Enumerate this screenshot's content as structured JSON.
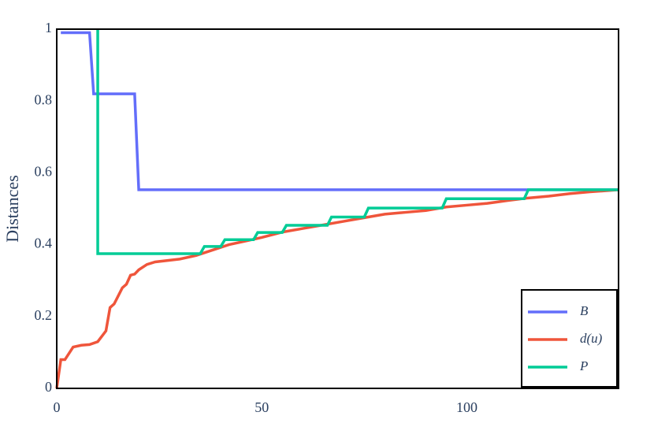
{
  "chart_data": {
    "type": "line",
    "y_label": "Distances",
    "xlim": [
      0,
      137
    ],
    "ylim": [
      0,
      1
    ],
    "xticks": [
      0,
      50,
      100
    ],
    "yticks": [
      0,
      0.2,
      0.4,
      0.6,
      0.8,
      1
    ],
    "grid": false,
    "legend": "bottom-right",
    "series": [
      {
        "name": "B",
        "color": "#636efa",
        "x": [
          1,
          8,
          9,
          19,
          20,
          137
        ],
        "values": [
          0.99,
          0.99,
          0.82,
          0.82,
          0.553,
          0.553
        ]
      },
      {
        "name": "d(u)",
        "color": "#ef553b",
        "x": [
          0,
          1,
          2,
          4,
          6,
          8,
          10,
          12,
          13,
          14,
          16,
          17,
          18,
          19,
          20,
          22,
          24,
          30,
          34,
          38,
          42,
          46,
          50,
          55,
          60,
          65,
          70,
          75,
          80,
          85,
          90,
          95,
          100,
          105,
          110,
          115,
          120,
          125,
          130,
          137
        ],
        "values": [
          0,
          0.08,
          0.08,
          0.115,
          0.12,
          0.122,
          0.13,
          0.16,
          0.225,
          0.235,
          0.28,
          0.29,
          0.315,
          0.318,
          0.33,
          0.345,
          0.352,
          0.36,
          0.37,
          0.385,
          0.4,
          0.41,
          0.42,
          0.435,
          0.445,
          0.455,
          0.465,
          0.475,
          0.485,
          0.49,
          0.495,
          0.505,
          0.51,
          0.515,
          0.523,
          0.53,
          0.535,
          0.542,
          0.547,
          0.553
        ]
      },
      {
        "name": "P",
        "color": "#00cc96",
        "x": [
          10,
          10,
          35,
          36,
          40,
          41,
          48,
          49,
          55,
          56,
          66,
          67,
          75,
          76,
          94,
          95,
          114,
          115,
          137
        ],
        "values": [
          1,
          0.375,
          0.375,
          0.395,
          0.395,
          0.414,
          0.414,
          0.434,
          0.434,
          0.454,
          0.454,
          0.477,
          0.477,
          0.502,
          0.502,
          0.528,
          0.528,
          0.553,
          0.553
        ]
      }
    ]
  }
}
